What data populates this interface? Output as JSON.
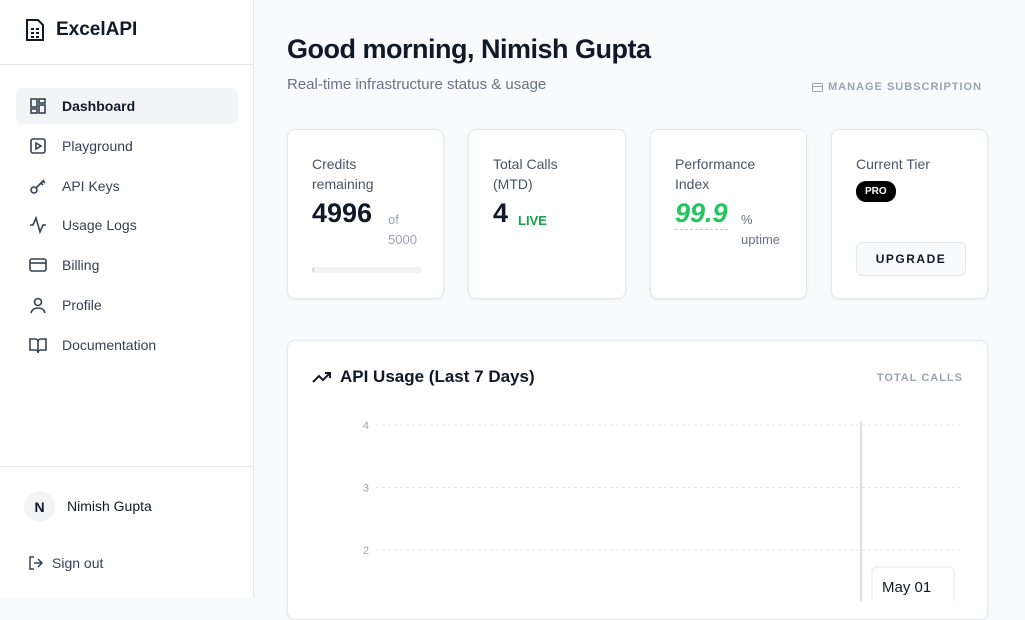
{
  "sidebar": {
    "brand": "ExcelAPI",
    "nav": [
      "Dashboard",
      "Playground",
      "API Keys",
      "Usage Logs",
      "Billing",
      "Profile",
      "Documentation"
    ],
    "user": {
      "initial": "N",
      "name": "Nimish Gupta"
    },
    "sign_out": "Sign out"
  },
  "header": {
    "title": "Good morning, Nimish Gupta",
    "subtitle": "Real-time infrastructure status & usage",
    "action": "MANAGE SUBSCRIPTION"
  },
  "cards": {
    "credits": {
      "label": "Credits remaining",
      "value": 4996,
      "of": "of",
      "total": 5000
    },
    "calls": {
      "label": "Total Calls (MTD)",
      "value": 4,
      "badge": "LIVE"
    },
    "performance": {
      "label": "Performance Index",
      "value": 99.9,
      "unit": "% uptime"
    },
    "tier": {
      "label": "Current Tier",
      "badge": "PRO",
      "button": "UPGRADE"
    }
  },
  "chart": {
    "title": "API Usage (Last 7 Days)",
    "legend": "TOTAL CALLS",
    "ylim": [
      0,
      4
    ],
    "yticks": [
      2,
      3,
      4
    ],
    "tooltip": "May 01"
  }
}
